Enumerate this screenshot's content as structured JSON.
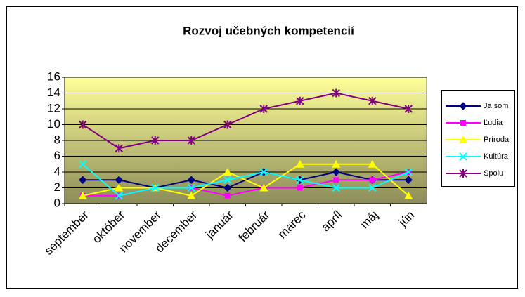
{
  "chart_data": {
    "type": "line",
    "title": "Rozvoj učebných kompetencií",
    "categories": [
      "september",
      "október",
      "november",
      "december",
      "január",
      "február",
      "marec",
      "apríl",
      "máj",
      "jún"
    ],
    "series": [
      {
        "name": "Ja som",
        "color": "#000080",
        "marker": "diamond",
        "values": [
          3,
          3,
          2,
          3,
          2,
          4,
          3,
          4,
          3,
          3
        ]
      },
      {
        "name": "Ľudia",
        "color": "#ff00ff",
        "marker": "square",
        "values": [
          1,
          1,
          2,
          2,
          1,
          2,
          2,
          3,
          3,
          4
        ]
      },
      {
        "name": "Príroda",
        "color": "#ffff00",
        "marker": "triangle",
        "values": [
          1,
          2,
          2,
          1,
          4,
          2,
          5,
          5,
          5,
          1
        ]
      },
      {
        "name": "Kultúra",
        "color": "#00ffff",
        "marker": "x",
        "values": [
          5,
          1,
          2,
          2,
          3,
          4,
          3,
          2,
          2,
          4
        ]
      },
      {
        "name": "Spolu",
        "color": "#800080",
        "marker": "asterisk",
        "values": [
          10,
          7,
          8,
          8,
          10,
          12,
          13,
          14,
          13,
          12
        ]
      }
    ],
    "ylim": [
      0,
      16
    ],
    "yticks": [
      0,
      2,
      4,
      6,
      8,
      10,
      12,
      14,
      16
    ],
    "grid": true,
    "legend": "right"
  }
}
